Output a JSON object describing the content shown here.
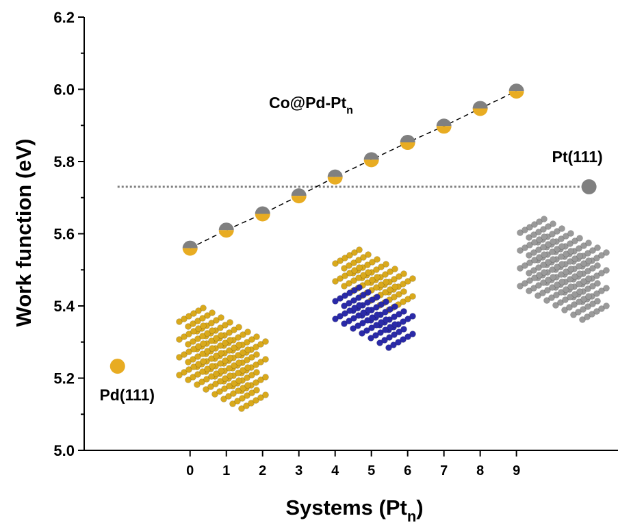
{
  "chart_data": {
    "type": "scatter",
    "ylabel": "Work function (eV)",
    "xlabel": {
      "main": "Systems (Pt",
      "sub": "n",
      "end": ")"
    },
    "annotation": {
      "main": "Co@Pd-Pt",
      "sub": "n"
    },
    "x": [
      0,
      1,
      2,
      3,
      4,
      5,
      6,
      7,
      8,
      9
    ],
    "values": [
      5.56,
      5.61,
      5.655,
      5.705,
      5.757,
      5.805,
      5.853,
      5.898,
      5.947,
      5.995
    ],
    "colors": [
      "#808080",
      "#e8ac22"
    ],
    "line_style": "dashed",
    "references": [
      {
        "label": "Pd(111)",
        "x": -2,
        "value": 5.233,
        "color": "#e8ac22"
      },
      {
        "label": "Pt(111)",
        "x": 11,
        "value": 5.73,
        "color": "#808080"
      }
    ],
    "xlim": [
      -2.92,
      11.8
    ],
    "xticks": [
      0,
      1,
      2,
      3,
      4,
      5,
      6,
      7,
      8,
      9
    ],
    "ylim": [
      5.0,
      6.2
    ],
    "yticks": [
      {
        "value": 5.0,
        "label": "5.0"
      },
      5.2,
      5.4,
      5.6,
      5.8,
      {
        "value": 6.0,
        "label": "6.0"
      },
      6.2
    ]
  }
}
